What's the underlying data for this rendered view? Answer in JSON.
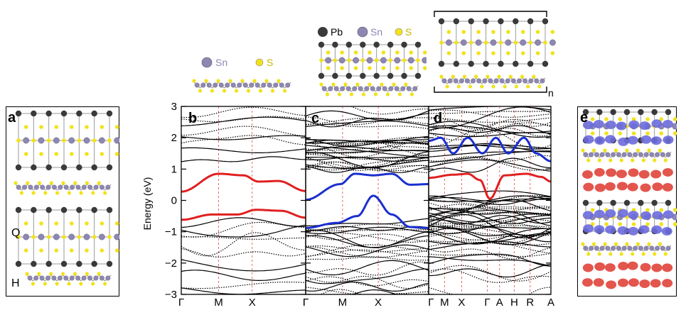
{
  "figure": {
    "panel_labels": [
      "a",
      "b",
      "c",
      "d",
      "e"
    ],
    "layer_labels": {
      "q": "Q",
      "h": "H"
    },
    "legend_sn_s": {
      "sn": "Sn",
      "s": "S"
    },
    "legend_pb_sn_s": {
      "pb": "Pb",
      "sn": "Sn",
      "s": "S"
    },
    "superlattice_index": "n",
    "atom_colors": {
      "pb": "#3a3a3a",
      "sn": "#8e87b4",
      "s": "#f2e21a",
      "bond": "#9a9a9a"
    },
    "band_colors": {
      "black": "#000000",
      "red": "#e02020",
      "blue": "#1a2fd0",
      "kpath_guides": "#e35a5a"
    },
    "isosurface_colors": {
      "blue": "#6b6bdd",
      "red": "#e0443a"
    }
  },
  "chart_data": [
    {
      "type": "line",
      "panel": "b",
      "ylabel": "Energy (eV)",
      "ylim": [
        -3,
        3
      ],
      "yticks": [
        "3",
        "2",
        "1",
        "0",
        "−1",
        "−2",
        "−3"
      ],
      "xtick_labels": [
        "Γ",
        "M",
        "X",
        "Γ"
      ],
      "highlighted_bands": [
        {
          "color": "red",
          "points": [
            [
              0,
              0.28
            ],
            [
              0.3,
              0.85
            ],
            [
              0.5,
              0.8
            ],
            [
              0.62,
              0.6
            ],
            [
              0.78,
              0.62
            ],
            [
              1,
              0.3
            ]
          ]
        },
        {
          "color": "red",
          "points": [
            [
              0,
              -0.62
            ],
            [
              0.25,
              -0.45
            ],
            [
              0.45,
              -0.45
            ],
            [
              0.6,
              -0.3
            ],
            [
              0.8,
              -0.33
            ],
            [
              1,
              -0.55
            ]
          ]
        }
      ]
    },
    {
      "type": "line",
      "panel": "c",
      "xtick_labels": [
        "Γ",
        "M",
        "X"
      ],
      "ylim": [
        -3,
        3
      ],
      "highlighted_bands": [
        {
          "color": "blue",
          "points": [
            [
              0,
              0.02
            ],
            [
              0.28,
              0.52
            ],
            [
              0.4,
              0.85
            ],
            [
              0.55,
              0.8
            ],
            [
              0.7,
              0.85
            ],
            [
              0.85,
              0.5
            ],
            [
              1,
              0.52
            ]
          ]
        },
        {
          "color": "blue",
          "points": [
            [
              0,
              -0.88
            ],
            [
              0.25,
              -0.72
            ],
            [
              0.42,
              -0.5
            ],
            [
              0.55,
              0.15
            ],
            [
              0.7,
              -0.45
            ],
            [
              0.85,
              -0.85
            ],
            [
              1,
              -0.88
            ]
          ]
        }
      ]
    },
    {
      "type": "line",
      "panel": "d",
      "xtick_labels": [
        "Γ",
        "M",
        "X",
        "Γ",
        "A",
        "H",
        "R",
        "A"
      ],
      "ylim": [
        -3,
        3
      ],
      "highlighted_bands": [
        {
          "color": "blue",
          "points": [
            [
              0,
              1.9
            ],
            [
              0.1,
              2.0
            ],
            [
              0.2,
              1.5
            ],
            [
              0.32,
              2.0
            ],
            [
              0.44,
              1.5
            ],
            [
              0.55,
              2.0
            ],
            [
              0.65,
              1.5
            ],
            [
              0.78,
              2.0
            ],
            [
              0.88,
              1.5
            ],
            [
              1,
              1.25
            ]
          ]
        },
        {
          "color": "red",
          "points": [
            [
              0,
              0.72
            ],
            [
              0.2,
              0.82
            ],
            [
              0.32,
              0.85
            ],
            [
              0.42,
              0.65
            ],
            [
              0.5,
              0.05
            ],
            [
              0.62,
              0.8
            ],
            [
              0.8,
              0.85
            ],
            [
              0.92,
              0.75
            ],
            [
              1,
              0.6
            ]
          ]
        }
      ]
    }
  ]
}
